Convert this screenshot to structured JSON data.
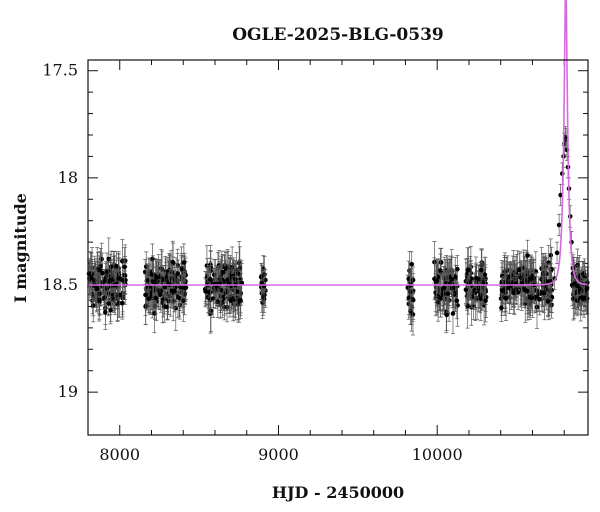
{
  "chart_data": {
    "type": "scatter",
    "title": "OGLE-2025-BLG-0539",
    "xlabel": "HJD - 2450000",
    "ylabel": "I magnitude",
    "xlim": [
      7800,
      10950
    ],
    "ylim": [
      17.45,
      19.2
    ],
    "y_inverted": true,
    "xticks": [
      8000,
      9000,
      10000
    ],
    "yticks": [
      17.5,
      18,
      18.5,
      19
    ],
    "ytick_labels": [
      "17.5",
      "18",
      "18.5",
      "19"
    ],
    "grid": false,
    "colors": {
      "points": "#000000",
      "errorbars": "#555555",
      "model": "#d46be0"
    },
    "baseline_mag": 18.5,
    "peak": {
      "x": 10810,
      "y": 17.81
    },
    "seasons": [
      {
        "x_start": 7805,
        "x_end": 8040,
        "mean": 18.5,
        "scatter": 0.05,
        "error": 0.08
      },
      {
        "x_start": 8160,
        "x_end": 8420,
        "mean": 18.5,
        "scatter": 0.05,
        "error": 0.08
      },
      {
        "x_start": 8530,
        "x_end": 8770,
        "mean": 18.5,
        "scatter": 0.05,
        "error": 0.08
      },
      {
        "x_start": 8890,
        "x_end": 8920,
        "mean": 18.5,
        "scatter": 0.04,
        "error": 0.07
      },
      {
        "x_start": 9810,
        "x_end": 9850,
        "mean": 18.53,
        "scatter": 0.07,
        "error": 0.08
      },
      {
        "x_start": 9980,
        "x_end": 10130,
        "mean": 18.5,
        "scatter": 0.05,
        "error": 0.08
      },
      {
        "x_start": 10180,
        "x_end": 10310,
        "mean": 18.5,
        "scatter": 0.05,
        "error": 0.08
      },
      {
        "x_start": 10400,
        "x_end": 10730,
        "mean": 18.5,
        "scatter": 0.05,
        "error": 0.08
      },
      {
        "x_start": 10850,
        "x_end": 10950,
        "mean": 18.52,
        "scatter": 0.05,
        "error": 0.08
      }
    ],
    "event_points": [
      [
        10740,
        18.47
      ],
      [
        10755,
        18.35
      ],
      [
        10768,
        18.22
      ],
      [
        10778,
        18.08
      ],
      [
        10788,
        17.98
      ],
      [
        10796,
        17.9
      ],
      [
        10802,
        17.84
      ],
      [
        10808,
        17.81
      ],
      [
        10812,
        17.82
      ],
      [
        10818,
        17.87
      ],
      [
        10824,
        17.95
      ],
      [
        10830,
        18.05
      ],
      [
        10838,
        18.18
      ],
      [
        10846,
        18.3
      ],
      [
        10855,
        18.42
      ]
    ],
    "model": {
      "t0": 10810,
      "tE": 25,
      "u0": 0.28,
      "base": 18.5
    }
  }
}
